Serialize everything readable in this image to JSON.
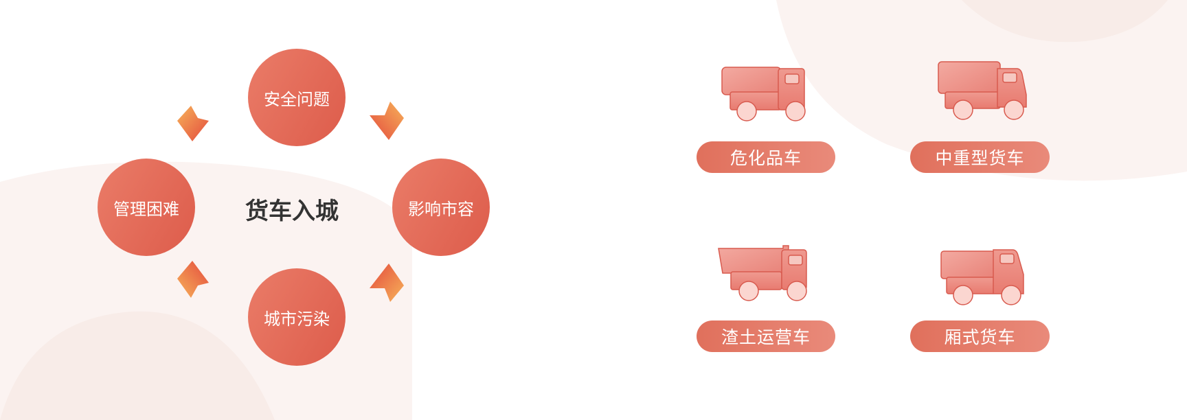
{
  "diagram": {
    "center": "货车入城",
    "nodes": {
      "top": "安全问题",
      "left": "管理困难",
      "right": "影响市容",
      "bottom": "城市污染"
    }
  },
  "vehicles": [
    {
      "label": "危化品车",
      "icon": "tanker-truck-icon"
    },
    {
      "label": "中重型货车",
      "icon": "heavy-truck-icon"
    },
    {
      "label": "渣土运营车",
      "icon": "dump-truck-icon"
    },
    {
      "label": "厢式货车",
      "icon": "box-truck-icon"
    }
  ],
  "colors": {
    "accent": "#e0624f",
    "accent_light": "#ea8a78",
    "title": "#333333",
    "decor": "#fbf1ee"
  }
}
